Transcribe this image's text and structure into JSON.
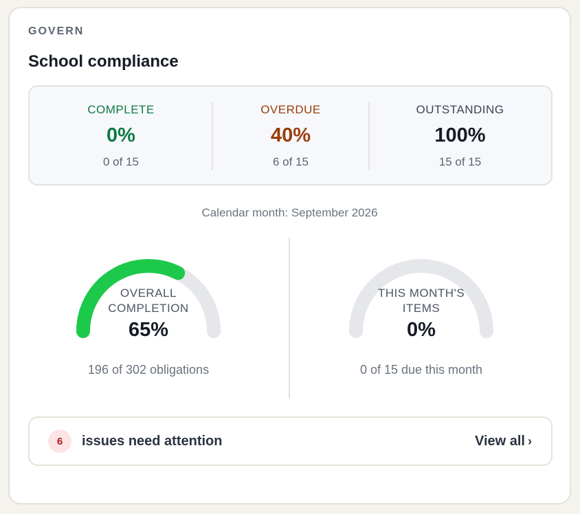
{
  "header": {
    "section_label": "GOVERN",
    "title": "School compliance"
  },
  "stats": [
    {
      "label": "COMPLETE",
      "value": "0%",
      "sub": "0 of 15",
      "color": "#0f7a45"
    },
    {
      "label": "OVERDUE",
      "value": "40%",
      "sub": "6 of 15",
      "color": "#9a3d0a"
    },
    {
      "label": "OUTSTANDING",
      "value": "100%",
      "sub": "15 of 15",
      "color": "#161b26"
    }
  ],
  "period": "Calendar month: September 2026",
  "gauges": [
    {
      "caption_line1": "OVERALL",
      "caption_line2": "COMPLETION",
      "value": "65%",
      "fraction": 0.65,
      "sub": "196 of 302 obligations",
      "color": "#1dc94a"
    },
    {
      "caption_line1": "THIS MONTH'S",
      "caption_line2": "ITEMS",
      "value": "0%",
      "fraction": 0,
      "sub": "0 of 15 due this month",
      "color": "#1dc94a"
    }
  ],
  "attention": {
    "count": "6",
    "text": "issues need attention",
    "link_label": "View all",
    "link_icon": "chevron-right-icon"
  },
  "colors": {
    "track": "#e5e7eb",
    "accent_green": "#1dc94a",
    "badge_bg": "#fde4e4",
    "badge_text": "#b11a1a"
  }
}
